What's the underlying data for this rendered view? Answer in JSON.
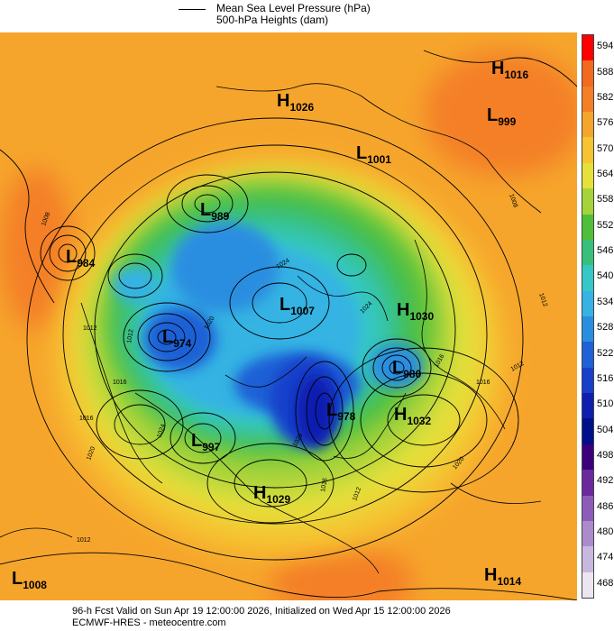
{
  "legend": {
    "line1": "Mean Sea Level Pressure (hPa)",
    "line2": "500-hPa Heights (dam)"
  },
  "colorbar": {
    "labels": [
      "594",
      "588",
      "582",
      "576",
      "570",
      "564",
      "558",
      "552",
      "546",
      "540",
      "534",
      "528",
      "522",
      "516",
      "510",
      "504",
      "498",
      "492",
      "486",
      "480",
      "474",
      "468"
    ],
    "colors": [
      "#ff0000",
      "#f26a1f",
      "#f47f26",
      "#f6a52c",
      "#f6c332",
      "#e5e03a",
      "#a5d33a",
      "#4fbf3a",
      "#38c07a",
      "#36c7c7",
      "#36b3e3",
      "#2a8ee0",
      "#1f61d6",
      "#173fcb",
      "#0e1fb0",
      "#000f8a",
      "#3b007a",
      "#6a2a9c",
      "#8d5cb8",
      "#ab8bcb",
      "#c9b8de",
      "#ece6f3"
    ]
  },
  "systems": [
    {
      "type": "H",
      "value": "1016"
    },
    {
      "type": "H",
      "value": "1026"
    },
    {
      "type": "L",
      "value": "999"
    },
    {
      "type": "L",
      "value": "1001"
    },
    {
      "type": "L",
      "value": "989"
    },
    {
      "type": "L",
      "value": "984"
    },
    {
      "type": "L",
      "value": "1007"
    },
    {
      "type": "H",
      "value": "1030"
    },
    {
      "type": "L",
      "value": "974"
    },
    {
      "type": "L",
      "value": "980"
    },
    {
      "type": "L",
      "value": "978"
    },
    {
      "type": "H",
      "value": "1032"
    },
    {
      "type": "L",
      "value": "997"
    },
    {
      "type": "H",
      "value": "1029"
    },
    {
      "type": "L",
      "value": "1008"
    },
    {
      "type": "H",
      "value": "1014"
    }
  ],
  "isobar_labels": [
    "1012",
    "1016",
    "1020",
    "1024",
    "1012",
    "1016",
    "1020",
    "1024",
    "1008",
    "1016",
    "1012",
    "1024",
    "1020",
    "1012",
    "1020",
    "1016",
    "1012",
    "1008",
    "1012",
    "1016"
  ],
  "footer": {
    "line1": "96-h Fcst Valid on Sun Apr 19 12:00:00 2026, Initialized on Wed Apr 15 12:00:00 2026",
    "line2": "ECMWF-HRES - meteocentre.com"
  }
}
